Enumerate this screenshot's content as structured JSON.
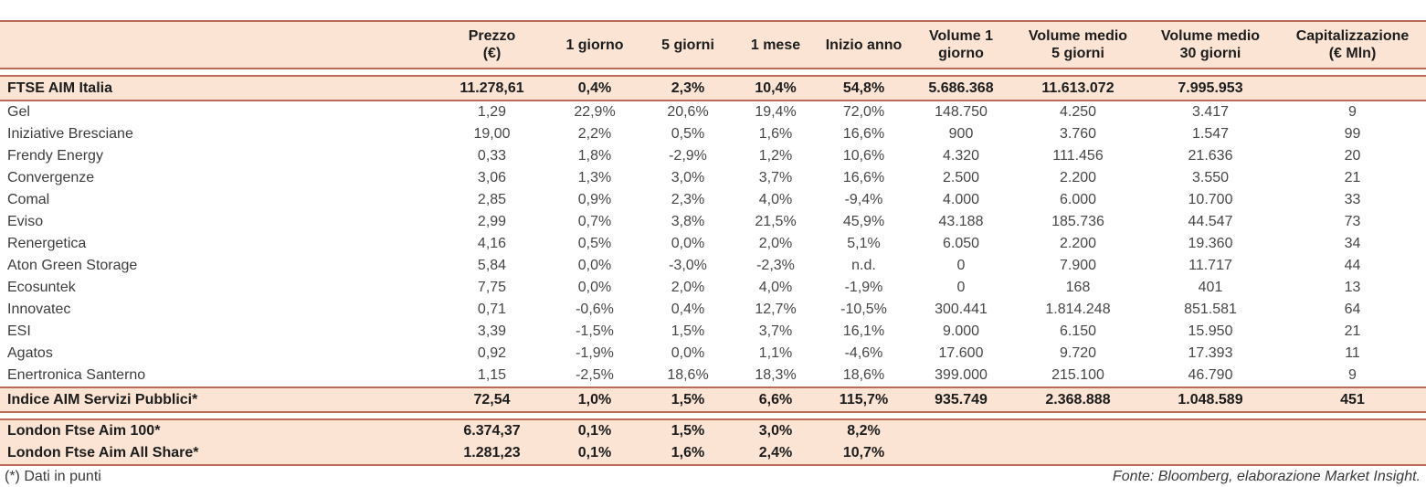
{
  "colors": {
    "band_fill": "#fbe4d4",
    "rule": "#ba6a58",
    "text_strong": "#1c1c1c",
    "text_normal": "#474747"
  },
  "table": {
    "columns": [
      {
        "lines": [
          ""
        ]
      },
      {
        "lines": [
          "Prezzo",
          "(€)"
        ]
      },
      {
        "lines": [
          "1 giorno"
        ]
      },
      {
        "lines": [
          "5 giorni"
        ]
      },
      {
        "lines": [
          "1 mese"
        ]
      },
      {
        "lines": [
          "Inizio anno"
        ]
      },
      {
        "lines": [
          "Volume 1",
          "giorno"
        ]
      },
      {
        "lines": [
          "Volume medio",
          "5 giorni"
        ]
      },
      {
        "lines": [
          "Volume medio",
          "30 giorni"
        ]
      },
      {
        "lines": [
          "Capitalizzazione",
          "(€ Mln)"
        ]
      }
    ],
    "index_row": [
      "FTSE AIM Italia",
      "11.278,61",
      "0,4%",
      "2,3%",
      "10,4%",
      "54,8%",
      "5.686.368",
      "11.613.072",
      "7.995.953",
      ""
    ],
    "stock_rows": [
      [
        "Gel",
        "1,29",
        "22,9%",
        "20,6%",
        "19,4%",
        "72,0%",
        "148.750",
        "4.250",
        "3.417",
        "9"
      ],
      [
        "Iniziative Bresciane",
        "19,00",
        "2,2%",
        "0,5%",
        "1,6%",
        "16,6%",
        "900",
        "3.760",
        "1.547",
        "99"
      ],
      [
        "Frendy Energy",
        "0,33",
        "1,8%",
        "-2,9%",
        "1,2%",
        "10,6%",
        "4.320",
        "111.456",
        "21.636",
        "20"
      ],
      [
        "Convergenze",
        "3,06",
        "1,3%",
        "3,0%",
        "3,7%",
        "16,6%",
        "2.500",
        "2.200",
        "3.550",
        "21"
      ],
      [
        "Comal",
        "2,85",
        "0,9%",
        "2,3%",
        "4,0%",
        "-9,4%",
        "4.000",
        "6.000",
        "10.700",
        "33"
      ],
      [
        "Eviso",
        "2,99",
        "0,7%",
        "3,8%",
        "21,5%",
        "45,9%",
        "43.188",
        "185.736",
        "44.547",
        "73"
      ],
      [
        "Renergetica",
        "4,16",
        "0,5%",
        "0,0%",
        "2,0%",
        "5,1%",
        "6.050",
        "2.200",
        "19.360",
        "34"
      ],
      [
        "Aton Green Storage",
        "5,84",
        "0,0%",
        "-3,0%",
        "-2,3%",
        "n.d.",
        "0",
        "7.900",
        "11.717",
        "44"
      ],
      [
        "Ecosuntek",
        "7,75",
        "0,0%",
        "2,0%",
        "4,0%",
        "-1,9%",
        "0",
        "168",
        "401",
        "13"
      ],
      [
        "Innovatec",
        "0,71",
        "-0,6%",
        "0,4%",
        "12,7%",
        "-10,5%",
        "300.441",
        "1.814.248",
        "851.581",
        "64"
      ],
      [
        "ESI",
        "3,39",
        "-1,5%",
        "1,5%",
        "3,7%",
        "16,1%",
        "9.000",
        "6.150",
        "15.950",
        "21"
      ],
      [
        "Agatos",
        "0,92",
        "-1,9%",
        "0,0%",
        "1,1%",
        "-4,6%",
        "17.600",
        "9.720",
        "17.393",
        "11"
      ],
      [
        "Enertronica Santerno",
        "1,15",
        "-2,5%",
        "18,6%",
        "18,3%",
        "18,6%",
        "399.000",
        "215.100",
        "46.790",
        "9"
      ]
    ],
    "sector_row": [
      "Indice AIM Servizi Pubblici*",
      "72,54",
      "1,0%",
      "1,5%",
      "6,6%",
      "115,7%",
      "935.749",
      "2.368.888",
      "1.048.589",
      "451"
    ],
    "london_rows": [
      [
        "London Ftse Aim 100*",
        "6.374,37",
        "0,1%",
        "1,5%",
        "3,0%",
        "8,2%",
        "",
        "",
        "",
        ""
      ],
      [
        "London Ftse Aim All Share*",
        "1.281,23",
        "0,1%",
        "1,6%",
        "2,4%",
        "10,7%",
        "",
        "",
        "",
        ""
      ]
    ]
  },
  "footer": {
    "note": "(*) Dati in punti",
    "source": "Fonte: Bloomberg, elaborazione Market Insight."
  }
}
